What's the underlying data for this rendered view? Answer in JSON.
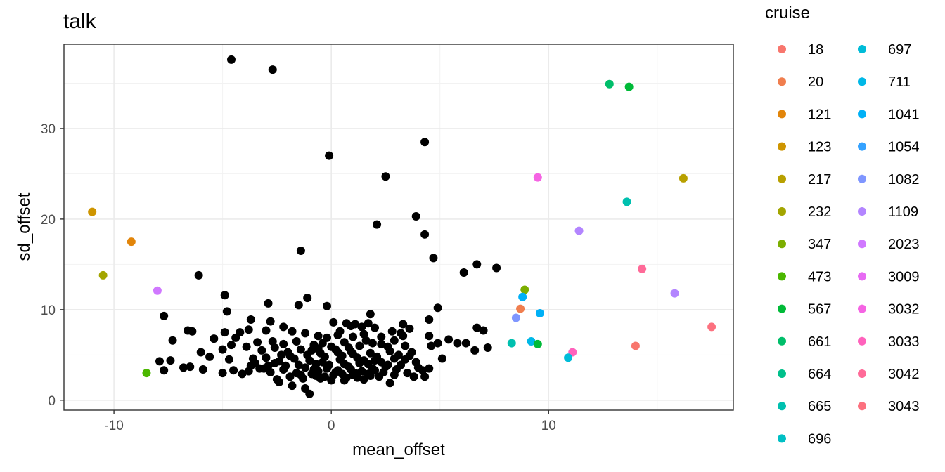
{
  "chart_data": {
    "type": "scatter",
    "title": "talk",
    "xlabel": "mean_offset",
    "ylabel": "sd_offset",
    "xlim": [
      -12.3,
      18.5
    ],
    "ylim": [
      -1.1,
      39.3
    ],
    "x_ticks": [
      -10,
      0,
      10
    ],
    "y_ticks": [
      0,
      10,
      20,
      30
    ],
    "grid": true,
    "legend": {
      "title": "cruise",
      "placement": "right",
      "columns": 2,
      "entries": [
        {
          "label": "18",
          "color": "#F8766D"
        },
        {
          "label": "20",
          "color": "#F07E4E"
        },
        {
          "label": "121",
          "color": "#E2850A"
        },
        {
          "label": "123",
          "color": "#CE9500"
        },
        {
          "label": "217",
          "color": "#B8A000"
        },
        {
          "label": "232",
          "color": "#A3A500"
        },
        {
          "label": "347",
          "color": "#7CAE00"
        },
        {
          "label": "473",
          "color": "#4BB700"
        },
        {
          "label": "567",
          "color": "#00BA38"
        },
        {
          "label": "661",
          "color": "#00BE6A"
        },
        {
          "label": "664",
          "color": "#00C08B"
        },
        {
          "label": "665",
          "color": "#00C0AF"
        },
        {
          "label": "696",
          "color": "#00BFC4"
        },
        {
          "label": "697",
          "color": "#00BCD8"
        },
        {
          "label": "711",
          "color": "#00B8E7"
        },
        {
          "label": "1041",
          "color": "#00B0F6"
        },
        {
          "label": "1054",
          "color": "#35A2FF"
        },
        {
          "label": "1082",
          "color": "#7F96FF"
        },
        {
          "label": "1109",
          "color": "#B385FF"
        },
        {
          "label": "2023",
          "color": "#D078FF"
        },
        {
          "label": "3009",
          "color": "#E76BF3"
        },
        {
          "label": "3032",
          "color": "#F564E3"
        },
        {
          "label": "3033",
          "color": "#FF62BC"
        },
        {
          "label": "3042",
          "color": "#FF6A98"
        },
        {
          "label": "3043",
          "color": "#FC717F"
        }
      ]
    },
    "colored_points": [
      {
        "x": -11.0,
        "y": 20.8,
        "cruise": "123"
      },
      {
        "x": -9.2,
        "y": 17.5,
        "cruise": "121"
      },
      {
        "x": -10.5,
        "y": 13.8,
        "cruise": "232"
      },
      {
        "x": -8.0,
        "y": 12.1,
        "cruise": "2023"
      },
      {
        "x": -8.5,
        "y": 3.0,
        "cruise": "473"
      },
      {
        "x": 12.8,
        "y": 34.9,
        "cruise": "661"
      },
      {
        "x": 13.7,
        "y": 34.6,
        "cruise": "567"
      },
      {
        "x": 16.2,
        "y": 24.5,
        "cruise": "217"
      },
      {
        "x": 9.5,
        "y": 24.6,
        "cruise": "3032"
      },
      {
        "x": 13.6,
        "y": 21.9,
        "cruise": "665"
      },
      {
        "x": 11.4,
        "y": 18.7,
        "cruise": "1109"
      },
      {
        "x": 14.3,
        "y": 14.5,
        "cruise": "3042"
      },
      {
        "x": 15.8,
        "y": 11.8,
        "cruise": "1109"
      },
      {
        "x": 8.9,
        "y": 12.2,
        "cruise": "347"
      },
      {
        "x": 8.8,
        "y": 11.4,
        "cruise": "1041"
      },
      {
        "x": 8.7,
        "y": 10.1,
        "cruise": "20"
      },
      {
        "x": 9.6,
        "y": 9.6,
        "cruise": "1041"
      },
      {
        "x": 8.5,
        "y": 9.1,
        "cruise": "1082"
      },
      {
        "x": 17.5,
        "y": 8.1,
        "cruise": "3043"
      },
      {
        "x": 8.3,
        "y": 6.3,
        "cruise": "665"
      },
      {
        "x": 9.2,
        "y": 6.5,
        "cruise": "711"
      },
      {
        "x": 9.5,
        "y": 6.2,
        "cruise": "567"
      },
      {
        "x": 14.0,
        "y": 6.0,
        "cruise": "18"
      },
      {
        "x": 11.1,
        "y": 5.3,
        "cruise": "3033"
      },
      {
        "x": 10.9,
        "y": 4.7,
        "cruise": "697"
      }
    ],
    "black_points": [
      [
        -4.6,
        37.6
      ],
      [
        -2.7,
        36.5
      ],
      [
        -0.1,
        27.0
      ],
      [
        4.3,
        28.5
      ],
      [
        2.5,
        24.7
      ],
      [
        3.9,
        20.3
      ],
      [
        2.1,
        19.4
      ],
      [
        4.3,
        18.3
      ],
      [
        -1.4,
        16.5
      ],
      [
        4.7,
        15.7
      ],
      [
        6.7,
        15.0
      ],
      [
        7.6,
        14.6
      ],
      [
        6.1,
        14.1
      ],
      [
        -6.1,
        13.8
      ],
      [
        -4.9,
        11.6
      ],
      [
        -1.1,
        11.3
      ],
      [
        -2.9,
        10.7
      ],
      [
        -1.5,
        10.5
      ],
      [
        -0.2,
        10.4
      ],
      [
        4.9,
        10.2
      ],
      [
        -4.8,
        9.8
      ],
      [
        -7.7,
        9.3
      ],
      [
        1.8,
        9.5
      ],
      [
        -3.7,
        8.9
      ],
      [
        4.5,
        8.9
      ],
      [
        -2.8,
        8.7
      ],
      [
        0.1,
        8.6
      ],
      [
        0.7,
        8.5
      ],
      [
        1.1,
        8.4
      ],
      [
        1.7,
        8.5
      ],
      [
        3.3,
        8.4
      ],
      [
        -2.2,
        8.1
      ],
      [
        0.9,
        8.2
      ],
      [
        2.0,
        8.0
      ],
      [
        3.6,
        7.9
      ],
      [
        6.7,
        8.0
      ],
      [
        7.0,
        7.7
      ],
      [
        -6.6,
        7.7
      ],
      [
        -6.4,
        7.6
      ],
      [
        -4.9,
        7.5
      ],
      [
        -4.2,
        7.5
      ],
      [
        -3.8,
        7.8
      ],
      [
        -3.0,
        7.7
      ],
      [
        -1.8,
        7.6
      ],
      [
        -1.2,
        7.4
      ],
      [
        -0.6,
        7.1
      ],
      [
        0.3,
        7.2
      ],
      [
        1.0,
        7.0
      ],
      [
        1.5,
        7.3
      ],
      [
        2.8,
        7.6
      ],
      [
        3.2,
        7.4
      ],
      [
        4.5,
        7.1
      ],
      [
        -7.3,
        6.6
      ],
      [
        -5.4,
        6.8
      ],
      [
        -4.4,
        6.9
      ],
      [
        -3.4,
        6.4
      ],
      [
        -2.7,
        6.5
      ],
      [
        -2.2,
        6.2
      ],
      [
        -1.6,
        6.5
      ],
      [
        -0.8,
        6.1
      ],
      [
        -0.4,
        6.3
      ],
      [
        0.6,
        6.4
      ],
      [
        1.3,
        6.0
      ],
      [
        2.3,
        6.2
      ],
      [
        3.4,
        6.0
      ],
      [
        4.9,
        6.3
      ],
      [
        5.4,
        6.7
      ],
      [
        5.8,
        6.3
      ],
      [
        6.2,
        6.3
      ],
      [
        7.2,
        5.8
      ],
      [
        -6.0,
        5.3
      ],
      [
        -5.0,
        5.6
      ],
      [
        -4.6,
        6.1
      ],
      [
        -3.9,
        5.9
      ],
      [
        -3.2,
        5.5
      ],
      [
        -2.6,
        5.8
      ],
      [
        -2.0,
        5.3
      ],
      [
        -1.4,
        5.6
      ],
      [
        -0.9,
        5.5
      ],
      [
        -0.5,
        5.2
      ],
      [
        0.2,
        5.6
      ],
      [
        0.9,
        5.4
      ],
      [
        1.8,
        5.2
      ],
      [
        2.7,
        5.4
      ],
      [
        3.7,
        5.3
      ],
      [
        6.6,
        5.5
      ],
      [
        -7.9,
        4.3
      ],
      [
        -7.4,
        4.4
      ],
      [
        -5.6,
        4.8
      ],
      [
        -4.7,
        4.5
      ],
      [
        -3.6,
        4.6
      ],
      [
        -3.0,
        4.7
      ],
      [
        -2.4,
        4.3
      ],
      [
        -1.7,
        4.6
      ],
      [
        -1.0,
        4.4
      ],
      [
        -0.3,
        4.8
      ],
      [
        0.4,
        4.5
      ],
      [
        1.2,
        4.7
      ],
      [
        2.0,
        4.4
      ],
      [
        2.9,
        4.6
      ],
      [
        3.9,
        4.2
      ],
      [
        5.1,
        4.6
      ],
      [
        -6.8,
        3.6
      ],
      [
        -6.5,
        3.7
      ],
      [
        -5.9,
        3.4
      ],
      [
        -5.0,
        3.0
      ],
      [
        -4.5,
        3.3
      ],
      [
        -3.8,
        3.2
      ],
      [
        -3.3,
        3.5
      ],
      [
        -2.8,
        3.1
      ],
      [
        -2.2,
        3.4
      ],
      [
        -1.6,
        3.0
      ],
      [
        -1.2,
        3.6
      ],
      [
        -0.6,
        3.2
      ],
      [
        -0.2,
        3.5
      ],
      [
        0.3,
        3.3
      ],
      [
        0.8,
        3.7
      ],
      [
        1.4,
        3.2
      ],
      [
        1.9,
        3.5
      ],
      [
        2.4,
        3.1
      ],
      [
        3.0,
        3.4
      ],
      [
        3.5,
        3.0
      ],
      [
        4.2,
        3.3
      ],
      [
        4.5,
        3.5
      ],
      [
        -7.7,
        3.3
      ],
      [
        -4.1,
        2.9
      ],
      [
        -2.5,
        2.3
      ],
      [
        -1.9,
        2.6
      ],
      [
        -1.3,
        2.4
      ],
      [
        -0.7,
        2.7
      ],
      [
        0.0,
        2.2
      ],
      [
        0.7,
        2.5
      ],
      [
        1.5,
        2.3
      ],
      [
        2.2,
        2.6
      ],
      [
        2.7,
        1.9
      ],
      [
        3.8,
        2.6
      ],
      [
        4.3,
        2.6
      ],
      [
        -1.8,
        1.6
      ],
      [
        -1.2,
        1.3
      ],
      [
        -1.0,
        0.7
      ],
      [
        -2.4,
        2.0
      ],
      [
        0.5,
        2.9
      ],
      [
        1.0,
        2.8
      ],
      [
        1.7,
        2.9
      ],
      [
        -0.9,
        2.9
      ],
      [
        -0.1,
        3.9
      ],
      [
        0.6,
        4.0
      ],
      [
        1.3,
        4.1
      ],
      [
        -1.5,
        3.9
      ],
      [
        -2.1,
        3.8
      ],
      [
        2.5,
        3.7
      ],
      [
        3.2,
        3.9
      ],
      [
        -0.4,
        4.2
      ],
      [
        0.1,
        2.8
      ],
      [
        -0.5,
        2.4
      ],
      [
        1.1,
        3.0
      ],
      [
        2.0,
        3.3
      ],
      [
        -1.9,
        4.9
      ],
      [
        -2.6,
        4.1
      ],
      [
        0.8,
        5.8
      ],
      [
        1.6,
        6.6
      ],
      [
        2.3,
        7.0
      ],
      [
        -0.2,
        6.9
      ],
      [
        0.4,
        7.6
      ],
      [
        1.4,
        8.1
      ],
      [
        -3.5,
        4.1
      ],
      [
        -2.9,
        3.8
      ],
      [
        3.1,
        5.0
      ],
      [
        2.6,
        5.9
      ],
      [
        0.0,
        5.9
      ],
      [
        -1.1,
        5.0
      ],
      [
        -0.7,
        4.0
      ],
      [
        0.2,
        3.1
      ],
      [
        0.9,
        3.4
      ],
      [
        1.7,
        4.0
      ],
      [
        2.3,
        4.2
      ],
      [
        3.4,
        4.5
      ],
      [
        -0.3,
        2.6
      ],
      [
        0.6,
        2.2
      ],
      [
        1.2,
        2.5
      ],
      [
        1.8,
        2.7
      ],
      [
        2.9,
        2.8
      ],
      [
        -1.4,
        2.8
      ],
      [
        -0.8,
        3.4
      ],
      [
        0.5,
        4.9
      ],
      [
        1.0,
        5.1
      ],
      [
        1.5,
        4.4
      ],
      [
        2.1,
        4.8
      ],
      [
        2.6,
        3.9
      ],
      [
        -2.3,
        5.0
      ],
      [
        -3.1,
        3.5
      ],
      [
        -3.7,
        3.8
      ],
      [
        4.0,
        3.6
      ],
      [
        3.6,
        4.9
      ],
      [
        4.6,
        6.0
      ],
      [
        -0.6,
        5.7
      ],
      [
        0.3,
        5.3
      ],
      [
        1.9,
        6.3
      ],
      [
        2.9,
        6.6
      ],
      [
        3.3,
        7.1
      ]
    ]
  }
}
